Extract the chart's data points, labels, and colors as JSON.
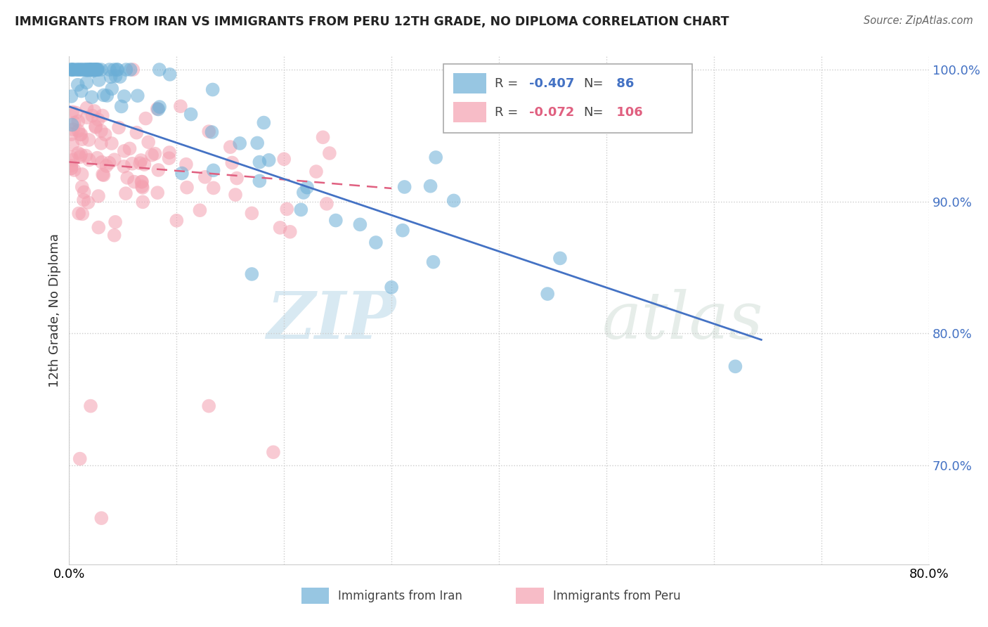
{
  "title": "IMMIGRANTS FROM IRAN VS IMMIGRANTS FROM PERU 12TH GRADE, NO DIPLOMA CORRELATION CHART",
  "source": "Source: ZipAtlas.com",
  "ylabel": "12th Grade, No Diploma",
  "legend_iran": "Immigrants from Iran",
  "legend_peru": "Immigrants from Peru",
  "R_iran": -0.407,
  "N_iran": 86,
  "R_peru": -0.072,
  "N_peru": 106,
  "color_iran": "#6baed6",
  "color_peru": "#f4a0b0",
  "trend_iran_color": "#4472c4",
  "trend_peru_color": "#e06080",
  "watermark": "ZIPatlas",
  "xmin": 0.0,
  "xmax": 0.8,
  "ymin": 0.625,
  "ymax": 1.01,
  "yticks": [
    0.7,
    0.8,
    0.9,
    1.0
  ],
  "ytick_labels": [
    "70.0%",
    "80.0%",
    "90.0%",
    "100.0%"
  ],
  "xticks": [
    0.0,
    0.1,
    0.2,
    0.3,
    0.4,
    0.5,
    0.6,
    0.7,
    0.8
  ],
  "xtick_labels": [
    "0.0%",
    "",
    "",
    "",
    "",
    "",
    "",
    "",
    "80.0%"
  ],
  "iran_trend_x0": 0.0,
  "iran_trend_y0": 0.972,
  "iran_trend_x1": 0.645,
  "iran_trend_y1": 0.795,
  "peru_trend_x0": 0.0,
  "peru_trend_y0": 0.93,
  "peru_trend_x1": 0.3,
  "peru_trend_y1": 0.91
}
